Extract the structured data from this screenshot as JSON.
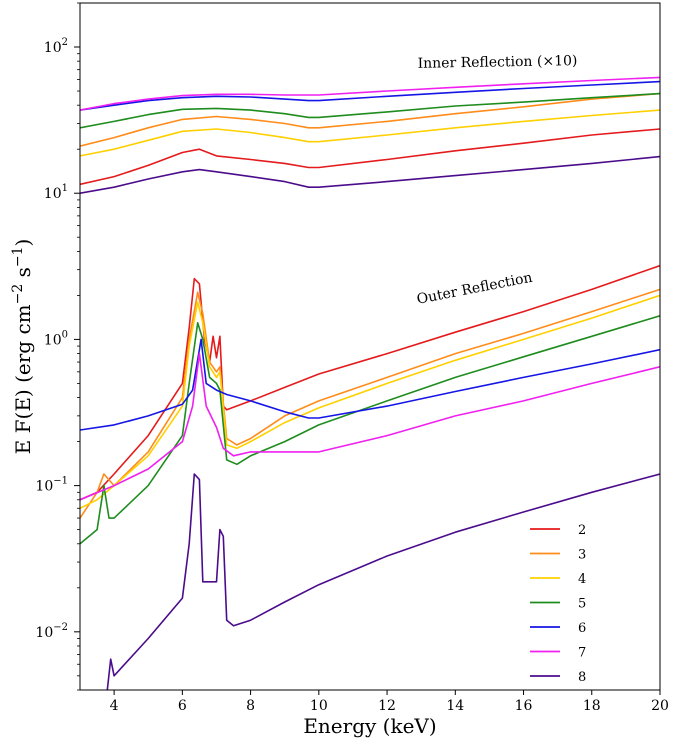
{
  "chart_data": {
    "type": "line",
    "xlabel": "Energy (keV)",
    "ylabel_parts": [
      "E F(E) (erg cm",
      "−2",
      " s",
      "−1",
      ")"
    ],
    "xlim": [
      3,
      20
    ],
    "ylim": [
      0.004,
      200
    ],
    "yscale": "log",
    "x_ticks": [
      4,
      6,
      8,
      10,
      12,
      14,
      16,
      18,
      20
    ],
    "x_tick_labels": [
      "4",
      "6",
      "8",
      "10",
      "12",
      "14",
      "16",
      "18",
      "20"
    ],
    "y_ticks": [
      0.01,
      0.1,
      1,
      10,
      100
    ],
    "y_tick_exponents": [
      "−2",
      "−1",
      "0",
      "1",
      "2"
    ],
    "grid": false,
    "legend_position": "lower-right",
    "annotations": [
      {
        "text": "Inner Reflection (×10)",
        "x": 12.9,
        "y": 72,
        "angle": -1
      },
      {
        "text": "Outer Reflection",
        "x": 12.9,
        "y": 1.75,
        "angle": -11
      }
    ],
    "series": [
      {
        "name": "2",
        "color": "#e41a1c",
        "group": "outer",
        "points": [
          [
            3,
            0.08
          ],
          [
            3.5,
            0.09
          ],
          [
            4,
            0.12
          ],
          [
            5,
            0.22
          ],
          [
            6,
            0.5
          ],
          [
            6.2,
            1.2
          ],
          [
            6.35,
            2.6
          ],
          [
            6.5,
            2.4
          ],
          [
            6.65,
            1.0
          ],
          [
            6.8,
            0.7
          ],
          [
            6.9,
            1.05
          ],
          [
            7.0,
            0.75
          ],
          [
            7.1,
            1.05
          ],
          [
            7.2,
            0.35
          ],
          [
            7.3,
            0.33
          ],
          [
            8,
            0.38
          ],
          [
            9,
            0.47
          ],
          [
            10,
            0.58
          ],
          [
            12,
            0.8
          ],
          [
            14,
            1.12
          ],
          [
            16,
            1.55
          ],
          [
            18,
            2.2
          ],
          [
            20,
            3.2
          ]
        ]
      },
      {
        "name": "3",
        "color": "#ff8c1a",
        "group": "outer",
        "points": [
          [
            3,
            0.06
          ],
          [
            3.5,
            0.09
          ],
          [
            3.7,
            0.12
          ],
          [
            4,
            0.1
          ],
          [
            5,
            0.17
          ],
          [
            6,
            0.4
          ],
          [
            6.2,
            1.0
          ],
          [
            6.45,
            2.1
          ],
          [
            6.6,
            1.5
          ],
          [
            6.8,
            0.7
          ],
          [
            7,
            0.6
          ],
          [
            7.1,
            0.65
          ],
          [
            7.3,
            0.21
          ],
          [
            7.6,
            0.19
          ],
          [
            8,
            0.21
          ],
          [
            9,
            0.3
          ],
          [
            10,
            0.38
          ],
          [
            12,
            0.55
          ],
          [
            14,
            0.8
          ],
          [
            16,
            1.1
          ],
          [
            18,
            1.55
          ],
          [
            20,
            2.2
          ]
        ]
      },
      {
        "name": "4",
        "color": "#ffd000",
        "group": "outer",
        "points": [
          [
            3,
            0.07
          ],
          [
            3.5,
            0.08
          ],
          [
            4,
            0.1
          ],
          [
            5,
            0.16
          ],
          [
            6,
            0.35
          ],
          [
            6.2,
            0.9
          ],
          [
            6.45,
            1.8
          ],
          [
            6.6,
            1.3
          ],
          [
            6.8,
            0.65
          ],
          [
            7,
            0.55
          ],
          [
            7.1,
            0.6
          ],
          [
            7.3,
            0.19
          ],
          [
            7.6,
            0.18
          ],
          [
            8,
            0.2
          ],
          [
            9,
            0.27
          ],
          [
            10,
            0.34
          ],
          [
            12,
            0.5
          ],
          [
            14,
            0.72
          ],
          [
            16,
            1.0
          ],
          [
            18,
            1.4
          ],
          [
            20,
            2.0
          ]
        ]
      },
      {
        "name": "5",
        "color": "#1e8c1e",
        "group": "outer",
        "points": [
          [
            3,
            0.04
          ],
          [
            3.5,
            0.05
          ],
          [
            3.7,
            0.1
          ],
          [
            3.85,
            0.06
          ],
          [
            4,
            0.06
          ],
          [
            5,
            0.1
          ],
          [
            6,
            0.22
          ],
          [
            6.2,
            0.5
          ],
          [
            6.45,
            1.3
          ],
          [
            6.6,
            1.0
          ],
          [
            6.8,
            0.55
          ],
          [
            7,
            0.5
          ],
          [
            7.1,
            0.45
          ],
          [
            7.3,
            0.15
          ],
          [
            7.6,
            0.14
          ],
          [
            8,
            0.16
          ],
          [
            9,
            0.2
          ],
          [
            10,
            0.26
          ],
          [
            12,
            0.38
          ],
          [
            14,
            0.55
          ],
          [
            16,
            0.76
          ],
          [
            18,
            1.05
          ],
          [
            20,
            1.45
          ]
        ]
      },
      {
        "name": "6",
        "color": "#1515e6",
        "group": "outer",
        "points": [
          [
            3,
            0.24
          ],
          [
            4,
            0.26
          ],
          [
            5,
            0.3
          ],
          [
            6,
            0.36
          ],
          [
            6.3,
            0.45
          ],
          [
            6.55,
            1.0
          ],
          [
            6.7,
            0.5
          ],
          [
            7,
            0.45
          ],
          [
            7.3,
            0.42
          ],
          [
            8,
            0.38
          ],
          [
            9,
            0.32
          ],
          [
            9.7,
            0.29
          ],
          [
            10,
            0.29
          ],
          [
            12,
            0.35
          ],
          [
            14,
            0.44
          ],
          [
            16,
            0.55
          ],
          [
            18,
            0.68
          ],
          [
            20,
            0.85
          ]
        ]
      },
      {
        "name": "7",
        "color": "#f020f0",
        "group": "outer",
        "points": [
          [
            3,
            0.08
          ],
          [
            4,
            0.1
          ],
          [
            5,
            0.13
          ],
          [
            6,
            0.2
          ],
          [
            6.3,
            0.35
          ],
          [
            6.5,
            0.8
          ],
          [
            6.7,
            0.35
          ],
          [
            7,
            0.25
          ],
          [
            7.2,
            0.18
          ],
          [
            7.5,
            0.16
          ],
          [
            8,
            0.17
          ],
          [
            9,
            0.17
          ],
          [
            10,
            0.17
          ],
          [
            12,
            0.22
          ],
          [
            14,
            0.3
          ],
          [
            16,
            0.38
          ],
          [
            18,
            0.5
          ],
          [
            20,
            0.65
          ]
        ]
      },
      {
        "name": "8",
        "color": "#4b0c8c",
        "group": "outer",
        "points": [
          [
            3.8,
            0.004
          ],
          [
            3.9,
            0.0065
          ],
          [
            4.0,
            0.005
          ],
          [
            5,
            0.009
          ],
          [
            6,
            0.017
          ],
          [
            6.2,
            0.04
          ],
          [
            6.35,
            0.12
          ],
          [
            6.5,
            0.11
          ],
          [
            6.6,
            0.022
          ],
          [
            7.0,
            0.022
          ],
          [
            7.1,
            0.05
          ],
          [
            7.2,
            0.045
          ],
          [
            7.3,
            0.012
          ],
          [
            7.5,
            0.011
          ],
          [
            8,
            0.012
          ],
          [
            9,
            0.016
          ],
          [
            10,
            0.021
          ],
          [
            12,
            0.033
          ],
          [
            14,
            0.048
          ],
          [
            16,
            0.066
          ],
          [
            18,
            0.09
          ],
          [
            20,
            0.12
          ]
        ]
      },
      {
        "name": "2",
        "color": "#e41a1c",
        "group": "inner",
        "points": [
          [
            3,
            11.5
          ],
          [
            4,
            13
          ],
          [
            5,
            15.5
          ],
          [
            6,
            19
          ],
          [
            6.5,
            20
          ],
          [
            7,
            18
          ],
          [
            8,
            17
          ],
          [
            9,
            16
          ],
          [
            9.7,
            15
          ],
          [
            10,
            15
          ],
          [
            12,
            17
          ],
          [
            14,
            19.5
          ],
          [
            16,
            22
          ],
          [
            18,
            25
          ],
          [
            20,
            27.5
          ]
        ]
      },
      {
        "name": "3",
        "color": "#ff8c1a",
        "group": "inner",
        "points": [
          [
            3,
            21
          ],
          [
            4,
            24
          ],
          [
            5,
            28
          ],
          [
            6,
            32
          ],
          [
            7,
            33.5
          ],
          [
            8,
            32
          ],
          [
            9,
            30
          ],
          [
            9.7,
            28
          ],
          [
            10,
            28
          ],
          [
            12,
            31
          ],
          [
            14,
            35
          ],
          [
            16,
            39
          ],
          [
            18,
            44
          ],
          [
            20,
            48
          ]
        ]
      },
      {
        "name": "4",
        "color": "#ffd000",
        "group": "inner",
        "points": [
          [
            3,
            18
          ],
          [
            4,
            20
          ],
          [
            5,
            23
          ],
          [
            6,
            26.5
          ],
          [
            7,
            27.5
          ],
          [
            8,
            26
          ],
          [
            9,
            24
          ],
          [
            9.7,
            22.5
          ],
          [
            10,
            22.5
          ],
          [
            12,
            25
          ],
          [
            14,
            28
          ],
          [
            16,
            31
          ],
          [
            18,
            34
          ],
          [
            20,
            37
          ]
        ]
      },
      {
        "name": "5",
        "color": "#1e8c1e",
        "group": "inner",
        "points": [
          [
            3,
            28
          ],
          [
            4,
            31
          ],
          [
            5,
            34.5
          ],
          [
            6,
            37.5
          ],
          [
            7,
            38
          ],
          [
            8,
            37
          ],
          [
            9,
            35
          ],
          [
            9.7,
            33
          ],
          [
            10,
            33
          ],
          [
            12,
            36
          ],
          [
            14,
            39.5
          ],
          [
            16,
            42
          ],
          [
            18,
            45
          ],
          [
            20,
            48
          ]
        ]
      },
      {
        "name": "6",
        "color": "#1515e6",
        "group": "inner",
        "points": [
          [
            3,
            37
          ],
          [
            4,
            40
          ],
          [
            5,
            43
          ],
          [
            6,
            45
          ],
          [
            7,
            46
          ],
          [
            8,
            45.5
          ],
          [
            9,
            44
          ],
          [
            9.7,
            43
          ],
          [
            10,
            43
          ],
          [
            12,
            46
          ],
          [
            14,
            49
          ],
          [
            16,
            52
          ],
          [
            18,
            55
          ],
          [
            20,
            58
          ]
        ]
      },
      {
        "name": "7",
        "color": "#f020f0",
        "group": "inner",
        "points": [
          [
            3,
            37
          ],
          [
            4,
            41
          ],
          [
            5,
            44
          ],
          [
            6,
            46.5
          ],
          [
            7,
            47.5
          ],
          [
            8,
            47.5
          ],
          [
            9,
            47
          ],
          [
            10,
            47
          ],
          [
            12,
            50
          ],
          [
            14,
            53
          ],
          [
            16,
            56
          ],
          [
            18,
            59
          ],
          [
            20,
            62
          ]
        ]
      },
      {
        "name": "8",
        "color": "#4b0c8c",
        "group": "inner",
        "points": [
          [
            3,
            10
          ],
          [
            4,
            11
          ],
          [
            5,
            12.5
          ],
          [
            6,
            14
          ],
          [
            6.5,
            14.5
          ],
          [
            7,
            14
          ],
          [
            8,
            13
          ],
          [
            9,
            12
          ],
          [
            9.7,
            11
          ],
          [
            10,
            11
          ],
          [
            12,
            12
          ],
          [
            14,
            13.2
          ],
          [
            16,
            14.5
          ],
          [
            18,
            16
          ],
          [
            20,
            17.8
          ]
        ]
      }
    ]
  }
}
